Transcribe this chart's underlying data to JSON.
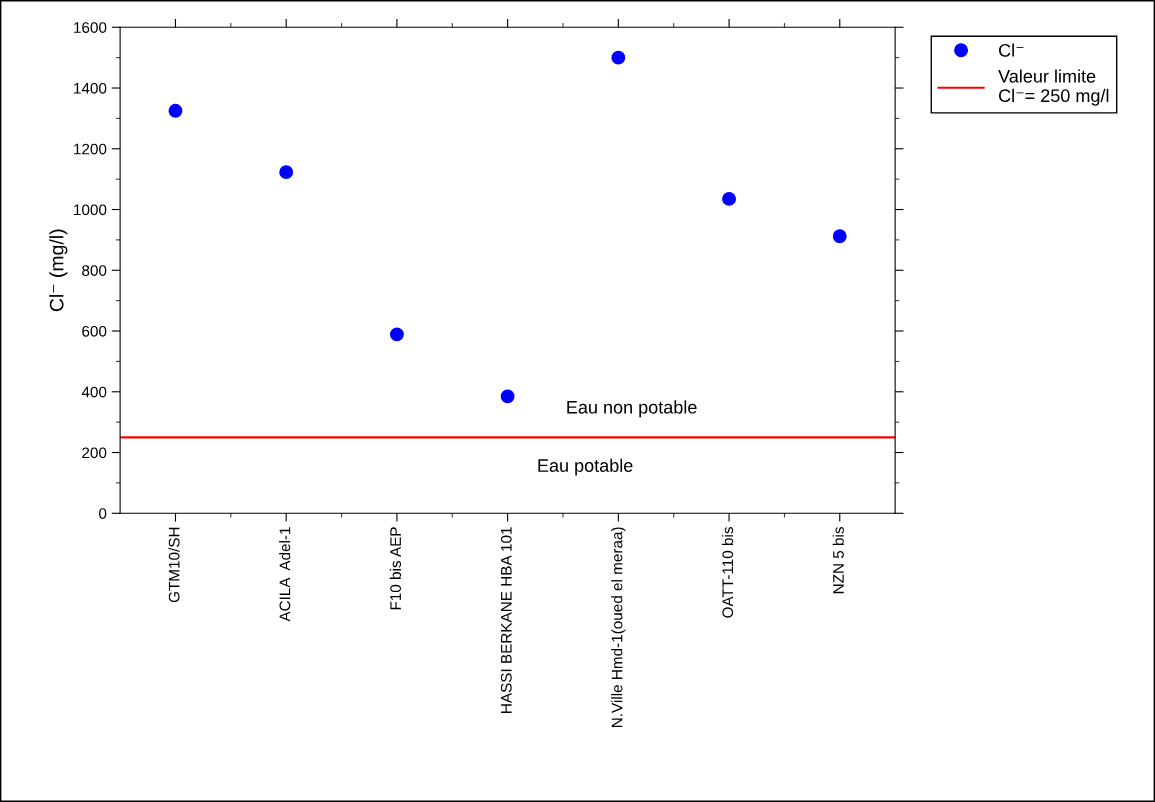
{
  "chart_data": {
    "type": "scatter",
    "ylabel": "Cl⁻ (mg/l)",
    "categories": [
      "GTM10/SH",
      "ACILA  Adel-1",
      "F10 bis AEP",
      "HASSI BERKANE HBA 101",
      "N.Ville Hmd-1(oued el meraa)",
      "OATT-110 bis",
      "NZN 5 bis"
    ],
    "series": [
      {
        "name": "Cl⁻",
        "color": "#0000ff",
        "values": [
          1325,
          1123,
          589,
          385,
          1500,
          1035,
          912
        ]
      }
    ],
    "ylim": [
      0,
      1600
    ],
    "yticks": [
      0,
      200,
      400,
      600,
      800,
      1000,
      1200,
      1400,
      1600
    ],
    "ref_lines": [
      {
        "axis": "y",
        "value": 250,
        "label": "Valeur limite\nCl⁻= 250 mg/l",
        "color": "#ff0000",
        "line_style": "solid"
      }
    ],
    "annotations": [
      "Eau non potable",
      "Eau potable"
    ],
    "marker": "circle",
    "grid": false,
    "legend": "top right"
  }
}
